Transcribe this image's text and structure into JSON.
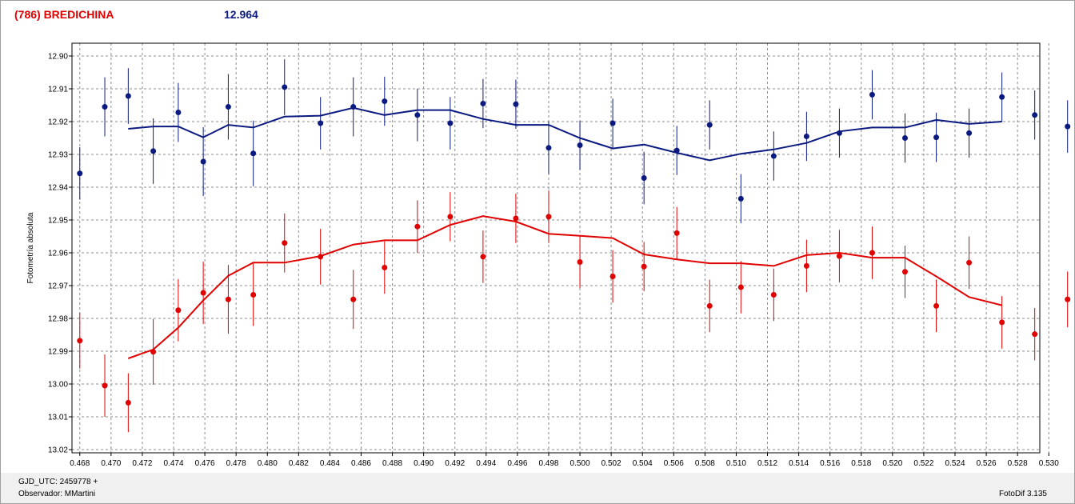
{
  "header": {
    "title": "(786) BREDICHINA",
    "magnitude": "12.964"
  },
  "footer": {
    "gjd": "GJD_UTC: 2459778 +",
    "observer": "Observador: MMartini",
    "version": "FotoDif 3.135"
  },
  "colors": {
    "blue": "#0b1a80",
    "red": "#e00000",
    "grid": "#8c8c8c"
  },
  "chart_data": {
    "type": "scatter",
    "title": "",
    "xlabel": "",
    "ylabel": "Fotometría absoluta",
    "xlim": [
      0.4675,
      0.5315
    ],
    "ylim": [
      12.9,
      13.02
    ],
    "y_inverted": true,
    "grid": true,
    "x_ticks": [
      "0.468",
      "0.470",
      "0.472",
      "0.474",
      "0.476",
      "0.478",
      "0.480",
      "0.482",
      "0.484",
      "0.486",
      "0.488",
      "0.490",
      "0.492",
      "0.494",
      "0.496",
      "0.498",
      "0.500",
      "0.502",
      "0.504",
      "0.506",
      "0.508",
      "0.510",
      "0.512",
      "0.514",
      "0.516",
      "0.518",
      "0.520",
      "0.522",
      "0.524",
      "0.526",
      "0.528",
      "0.530"
    ],
    "y_ticks": [
      "12.90",
      "12.91",
      "12.92",
      "12.93",
      "12.94",
      "12.95",
      "12.96",
      "12.97",
      "12.98",
      "12.99",
      "13.00",
      "13.01",
      "13.02"
    ],
    "series": [
      {
        "color": "blue",
        "points": [
          {
            "x": 0.468,
            "y": 12.9358,
            "err": 0.008
          },
          {
            "x": 0.4696,
            "y": 12.9155,
            "err": 0.009
          },
          {
            "x": 0.4711,
            "y": 12.9122,
            "err": 0.0085
          },
          {
            "x": 0.4727,
            "y": 12.929,
            "err": 0.01
          },
          {
            "x": 0.4743,
            "y": 12.9172,
            "err": 0.009
          },
          {
            "x": 0.4759,
            "y": 12.9322,
            "err": 0.0105
          },
          {
            "x": 0.4775,
            "y": 12.9155,
            "err": 0.01
          },
          {
            "x": 0.4791,
            "y": 12.9297,
            "err": 0.01
          },
          {
            "x": 0.4811,
            "y": 12.9095,
            "err": 0.0085
          },
          {
            "x": 0.4834,
            "y": 12.9205,
            "err": 0.008
          },
          {
            "x": 0.4855,
            "y": 12.9155,
            "err": 0.009
          },
          {
            "x": 0.4875,
            "y": 12.9138,
            "err": 0.0075
          },
          {
            "x": 0.4896,
            "y": 12.918,
            "err": 0.008
          },
          {
            "x": 0.4917,
            "y": 12.9205,
            "err": 0.008
          },
          {
            "x": 0.4938,
            "y": 12.9145,
            "err": 0.0075
          },
          {
            "x": 0.4959,
            "y": 12.9147,
            "err": 0.0075
          },
          {
            "x": 0.498,
            "y": 12.928,
            "err": 0.008
          },
          {
            "x": 0.5,
            "y": 12.9272,
            "err": 0.0075
          },
          {
            "x": 0.5021,
            "y": 12.9205,
            "err": 0.0075
          },
          {
            "x": 0.5041,
            "y": 12.9372,
            "err": 0.008
          },
          {
            "x": 0.5062,
            "y": 12.9288,
            "err": 0.0075
          },
          {
            "x": 0.5083,
            "y": 12.921,
            "err": 0.0075
          },
          {
            "x": 0.5103,
            "y": 12.9435,
            "err": 0.0075
          },
          {
            "x": 0.5124,
            "y": 12.9305,
            "err": 0.0075
          },
          {
            "x": 0.5145,
            "y": 12.9245,
            "err": 0.0075
          },
          {
            "x": 0.5166,
            "y": 12.9235,
            "err": 0.0075
          },
          {
            "x": 0.5187,
            "y": 12.9118,
            "err": 0.0075
          },
          {
            "x": 0.5208,
            "y": 12.925,
            "err": 0.0075
          },
          {
            "x": 0.5228,
            "y": 12.9248,
            "err": 0.0075
          },
          {
            "x": 0.5249,
            "y": 12.9235,
            "err": 0.0075
          },
          {
            "x": 0.527,
            "y": 12.9125,
            "err": 0.0075
          },
          {
            "x": 0.5291,
            "y": 12.918,
            "err": 0.0075
          },
          {
            "x": 0.5312,
            "y": 12.9215,
            "err": 0.008
          }
        ],
        "fit": [
          {
            "x": 0.4711,
            "y": 12.9222
          },
          {
            "x": 0.4727,
            "y": 12.9215
          },
          {
            "x": 0.4743,
            "y": 12.9215
          },
          {
            "x": 0.4759,
            "y": 12.9248
          },
          {
            "x": 0.4775,
            "y": 12.921
          },
          {
            "x": 0.4791,
            "y": 12.9218
          },
          {
            "x": 0.4811,
            "y": 12.9185
          },
          {
            "x": 0.4834,
            "y": 12.9182
          },
          {
            "x": 0.4855,
            "y": 12.9158
          },
          {
            "x": 0.4875,
            "y": 12.918
          },
          {
            "x": 0.4896,
            "y": 12.9165
          },
          {
            "x": 0.4917,
            "y": 12.9165
          },
          {
            "x": 0.4938,
            "y": 12.9192
          },
          {
            "x": 0.4959,
            "y": 12.921
          },
          {
            "x": 0.498,
            "y": 12.921
          },
          {
            "x": 0.5,
            "y": 12.925
          },
          {
            "x": 0.5021,
            "y": 12.9282
          },
          {
            "x": 0.5041,
            "y": 12.927
          },
          {
            "x": 0.5062,
            "y": 12.9295
          },
          {
            "x": 0.5083,
            "y": 12.9318
          },
          {
            "x": 0.5103,
            "y": 12.9298
          },
          {
            "x": 0.5124,
            "y": 12.9285
          },
          {
            "x": 0.5145,
            "y": 12.9265
          },
          {
            "x": 0.5166,
            "y": 12.923
          },
          {
            "x": 0.5187,
            "y": 12.9218
          },
          {
            "x": 0.5208,
            "y": 12.9218
          },
          {
            "x": 0.5228,
            "y": 12.9195
          },
          {
            "x": 0.5249,
            "y": 12.9207
          },
          {
            "x": 0.527,
            "y": 12.92
          }
        ]
      },
      {
        "color": "red",
        "points": [
          {
            "x": 0.468,
            "y": 12.9868,
            "err": 0.0085
          },
          {
            "x": 0.4696,
            "y": 13.0005,
            "err": 0.0095
          },
          {
            "x": 0.4711,
            "y": 13.0057,
            "err": 0.009
          },
          {
            "x": 0.4727,
            "y": 12.9902,
            "err": 0.01
          },
          {
            "x": 0.4743,
            "y": 12.9775,
            "err": 0.0095
          },
          {
            "x": 0.4759,
            "y": 12.9722,
            "err": 0.0095
          },
          {
            "x": 0.4775,
            "y": 12.9742,
            "err": 0.0105
          },
          {
            "x": 0.4791,
            "y": 12.9728,
            "err": 0.0095
          },
          {
            "x": 0.4811,
            "y": 12.957,
            "err": 0.009
          },
          {
            "x": 0.4834,
            "y": 12.9612,
            "err": 0.0085
          },
          {
            "x": 0.4855,
            "y": 12.9742,
            "err": 0.009
          },
          {
            "x": 0.4875,
            "y": 12.9645,
            "err": 0.008
          },
          {
            "x": 0.4896,
            "y": 12.952,
            "err": 0.008
          },
          {
            "x": 0.4917,
            "y": 12.949,
            "err": 0.0075
          },
          {
            "x": 0.4938,
            "y": 12.9612,
            "err": 0.008
          },
          {
            "x": 0.4959,
            "y": 12.9495,
            "err": 0.0075
          },
          {
            "x": 0.498,
            "y": 12.949,
            "err": 0.008
          },
          {
            "x": 0.5,
            "y": 12.9628,
            "err": 0.008
          },
          {
            "x": 0.5021,
            "y": 12.9672,
            "err": 0.008
          },
          {
            "x": 0.5041,
            "y": 12.9642,
            "err": 0.0075
          },
          {
            "x": 0.5062,
            "y": 12.954,
            "err": 0.008
          },
          {
            "x": 0.5083,
            "y": 12.9762,
            "err": 0.008
          },
          {
            "x": 0.5103,
            "y": 12.9705,
            "err": 0.008
          },
          {
            "x": 0.5124,
            "y": 12.9728,
            "err": 0.008
          },
          {
            "x": 0.5145,
            "y": 12.964,
            "err": 0.008
          },
          {
            "x": 0.5166,
            "y": 12.961,
            "err": 0.008
          },
          {
            "x": 0.5187,
            "y": 12.96,
            "err": 0.008
          },
          {
            "x": 0.5208,
            "y": 12.9658,
            "err": 0.008
          },
          {
            "x": 0.5228,
            "y": 12.9762,
            "err": 0.008
          },
          {
            "x": 0.5249,
            "y": 12.963,
            "err": 0.008
          },
          {
            "x": 0.527,
            "y": 12.9812,
            "err": 0.008
          },
          {
            "x": 0.5291,
            "y": 12.9848,
            "err": 0.008
          },
          {
            "x": 0.5312,
            "y": 12.9742,
            "err": 0.0085
          }
        ],
        "fit": [
          {
            "x": 0.4711,
            "y": 12.9922
          },
          {
            "x": 0.4727,
            "y": 12.9895
          },
          {
            "x": 0.4743,
            "y": 12.9828
          },
          {
            "x": 0.4759,
            "y": 12.9745
          },
          {
            "x": 0.4775,
            "y": 12.967
          },
          {
            "x": 0.4791,
            "y": 12.963
          },
          {
            "x": 0.4811,
            "y": 12.963
          },
          {
            "x": 0.4834,
            "y": 12.961
          },
          {
            "x": 0.4855,
            "y": 12.9575
          },
          {
            "x": 0.4875,
            "y": 12.9562
          },
          {
            "x": 0.4896,
            "y": 12.9562
          },
          {
            "x": 0.4917,
            "y": 12.9515
          },
          {
            "x": 0.4938,
            "y": 12.9488
          },
          {
            "x": 0.4959,
            "y": 12.9505
          },
          {
            "x": 0.498,
            "y": 12.9542
          },
          {
            "x": 0.5,
            "y": 12.9548
          },
          {
            "x": 0.5021,
            "y": 12.9555
          },
          {
            "x": 0.5041,
            "y": 12.9605
          },
          {
            "x": 0.5062,
            "y": 12.962
          },
          {
            "x": 0.5083,
            "y": 12.9632
          },
          {
            "x": 0.5103,
            "y": 12.9632
          },
          {
            "x": 0.5124,
            "y": 12.964
          },
          {
            "x": 0.5145,
            "y": 12.9607
          },
          {
            "x": 0.5166,
            "y": 12.96
          },
          {
            "x": 0.5187,
            "y": 12.9615
          },
          {
            "x": 0.5208,
            "y": 12.9615
          },
          {
            "x": 0.5228,
            "y": 12.9672
          },
          {
            "x": 0.5249,
            "y": 12.9735
          },
          {
            "x": 0.527,
            "y": 12.976
          }
        ]
      }
    ]
  }
}
